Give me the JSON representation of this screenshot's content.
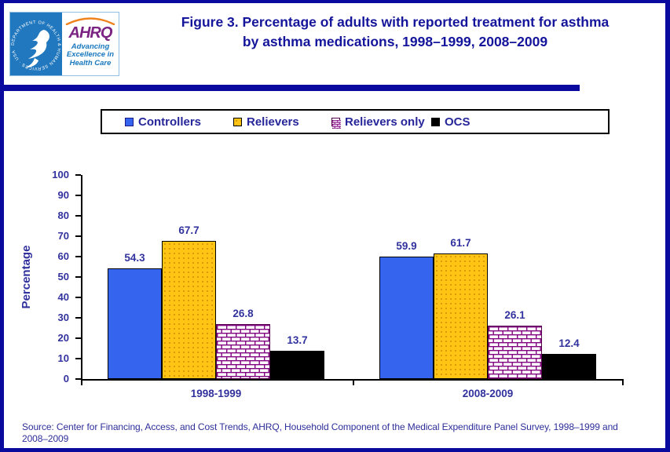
{
  "page": {
    "header": {
      "logo": {
        "hhs_seal_text": "DEPARTMENT OF HEALTH & HUMAN SERVICES · USA",
        "ahrq_acronym": "AHRQ",
        "tagline": "Advancing Excellence in Health Care"
      },
      "title_line1": "Figure 3. Percentage of adults with reported treatment for asthma",
      "title_line2": "by asthma medications, 1998–1999, 2008–2009"
    },
    "source_note": "Source: Center for Financing, Access, and Cost Trends, AHRQ, Household Component of the Medical Expenditure Panel Survey, 1998–1999 and 2008–2009",
    "colors": {
      "border_navy": "#0a0a9e",
      "text_navy": "#32329e",
      "title_navy": "#15159b",
      "controllers_blue": "#3565ef",
      "relievers_yellow": "#ffc414",
      "relievers_only_purple": "#800080",
      "ocs_black": "#000000"
    }
  },
  "chart_data": {
    "type": "bar",
    "title": "Figure 3. Percentage of adults with reported treatment for asthma by asthma medications, 1998–1999, 2008–2009",
    "xlabel": "",
    "ylabel": "Percentage",
    "ylim": [
      0,
      100
    ],
    "y_ticks": [
      0,
      10,
      20,
      30,
      40,
      50,
      60,
      70,
      80,
      90,
      100
    ],
    "grid": false,
    "legend_position": "top",
    "value_labels": true,
    "categories": [
      "1998-1999",
      "2008-2009"
    ],
    "series": [
      {
        "name": "Controllers",
        "values": [
          54.3,
          59.9
        ],
        "color": "#3565ef",
        "pattern": "solid"
      },
      {
        "name": "Relievers",
        "values": [
          67.7,
          61.7
        ],
        "color": "#ffc414",
        "pattern": "dots"
      },
      {
        "name": "Relievers only",
        "values": [
          26.8,
          26.1
        ],
        "color": "#800080",
        "pattern": "brick"
      },
      {
        "name": "OCS",
        "values": [
          13.7,
          12.4
        ],
        "color": "#000000",
        "pattern": "solid"
      }
    ]
  }
}
